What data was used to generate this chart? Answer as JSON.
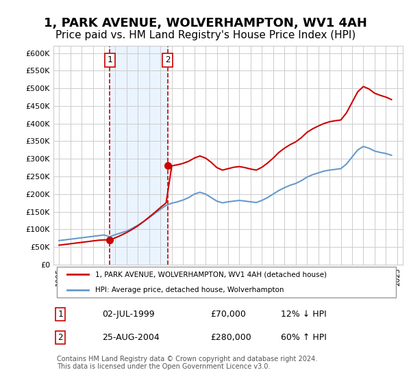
{
  "title": "1, PARK AVENUE, WOLVERHAMPTON, WV1 4AH",
  "subtitle": "Price paid vs. HM Land Registry's House Price Index (HPI)",
  "title_fontsize": 13,
  "subtitle_fontsize": 11,
  "ylabel_ticks": [
    "£0",
    "£50K",
    "£100K",
    "£150K",
    "£200K",
    "£250K",
    "£300K",
    "£350K",
    "£400K",
    "£450K",
    "£500K",
    "£550K",
    "£600K"
  ],
  "ytick_values": [
    0,
    50000,
    100000,
    150000,
    200000,
    250000,
    300000,
    350000,
    400000,
    450000,
    500000,
    550000,
    600000
  ],
  "ylim": [
    0,
    620000
  ],
  "xlim_start": 1994.5,
  "xlim_end": 2025.5,
  "xtick_years": [
    1995,
    1996,
    1997,
    1998,
    1999,
    2000,
    2001,
    2002,
    2003,
    2004,
    2005,
    2006,
    2007,
    2008,
    2009,
    2010,
    2011,
    2012,
    2013,
    2014,
    2015,
    2016,
    2017,
    2018,
    2019,
    2020,
    2021,
    2022,
    2023,
    2024,
    2025
  ],
  "sale1_x": 1999.5,
  "sale1_y": 70000,
  "sale2_x": 2004.65,
  "sale2_y": 280000,
  "sale1_label": "1",
  "sale2_label": "2",
  "vline1_x": 1999.5,
  "vline2_x": 2004.65,
  "shade_color": "#ddeeff",
  "vline_color": "#cc0000",
  "red_line_color": "#cc0000",
  "blue_line_color": "#6699cc",
  "legend1_text": "1, PARK AVENUE, WOLVERHAMPTON, WV1 4AH (detached house)",
  "legend2_text": "HPI: Average price, detached house, Wolverhampton",
  "table_row1": [
    "1",
    "02-JUL-1999",
    "£70,000",
    "12% ↓ HPI"
  ],
  "table_row2": [
    "2",
    "25-AUG-2004",
    "£280,000",
    "60% ↑ HPI"
  ],
  "footer": "Contains HM Land Registry data © Crown copyright and database right 2024.\nThis data is licensed under the Open Government Licence v3.0.",
  "background_color": "#ffffff",
  "grid_color": "#cccccc",
  "hpi_years": [
    1995,
    1995.5,
    1996,
    1996.5,
    1997,
    1997.5,
    1998,
    1998.5,
    1999,
    1999.5,
    2000,
    2000.5,
    2001,
    2001.5,
    2002,
    2002.5,
    2003,
    2003.5,
    2004,
    2004.5,
    2005,
    2005.5,
    2006,
    2006.5,
    2007,
    2007.5,
    2008,
    2008.5,
    2009,
    2009.5,
    2010,
    2010.5,
    2011,
    2011.5,
    2012,
    2012.5,
    2013,
    2013.5,
    2014,
    2014.5,
    2015,
    2015.5,
    2016,
    2016.5,
    2017,
    2017.5,
    2018,
    2018.5,
    2019,
    2019.5,
    2020,
    2020.5,
    2021,
    2021.5,
    2022,
    2022.5,
    2023,
    2023.5,
    2024,
    2024.5
  ],
  "hpi_values": [
    68000,
    70000,
    72000,
    74000,
    76000,
    78000,
    80000,
    82000,
    84000,
    79000,
    85000,
    90000,
    95000,
    103000,
    112000,
    122000,
    133000,
    145000,
    157000,
    168000,
    174000,
    178000,
    183000,
    190000,
    200000,
    205000,
    200000,
    190000,
    180000,
    175000,
    178000,
    180000,
    182000,
    180000,
    178000,
    176000,
    182000,
    190000,
    200000,
    210000,
    218000,
    225000,
    230000,
    238000,
    248000,
    255000,
    260000,
    265000,
    268000,
    270000,
    272000,
    285000,
    305000,
    325000,
    335000,
    330000,
    322000,
    318000,
    315000,
    310000
  ],
  "price_years": [
    1995,
    1995.5,
    1996,
    1996.5,
    1997,
    1997.5,
    1998,
    1998.5,
    1999,
    1999.5,
    2000,
    2000.5,
    2001,
    2001.5,
    2002,
    2002.5,
    2003,
    2003.5,
    2004,
    2004.5,
    2005,
    2005.5,
    2006,
    2006.5,
    2007,
    2007.5,
    2008,
    2008.5,
    2009,
    2009.5,
    2010,
    2010.5,
    2011,
    2011.5,
    2012,
    2012.5,
    2013,
    2013.5,
    2014,
    2014.5,
    2015,
    2015.5,
    2016,
    2016.5,
    2017,
    2017.5,
    2018,
    2018.5,
    2019,
    2019.5,
    2020,
    2020.5,
    2021,
    2021.5,
    2022,
    2022.5,
    2023,
    2023.5,
    2024,
    2024.5
  ],
  "price_values": [
    55000,
    57000,
    59000,
    61000,
    63000,
    65000,
    67000,
    69000,
    70000,
    70000,
    76000,
    83000,
    91000,
    100000,
    110000,
    122000,
    135000,
    148000,
    162000,
    175000,
    280000,
    283000,
    287000,
    293000,
    302000,
    308000,
    302000,
    290000,
    275000,
    268000,
    272000,
    276000,
    278000,
    275000,
    271000,
    268000,
    276000,
    288000,
    302000,
    318000,
    330000,
    340000,
    348000,
    360000,
    375000,
    385000,
    393000,
    400000,
    405000,
    408000,
    410000,
    430000,
    460000,
    490000,
    505000,
    498000,
    486000,
    480000,
    475000,
    468000
  ]
}
